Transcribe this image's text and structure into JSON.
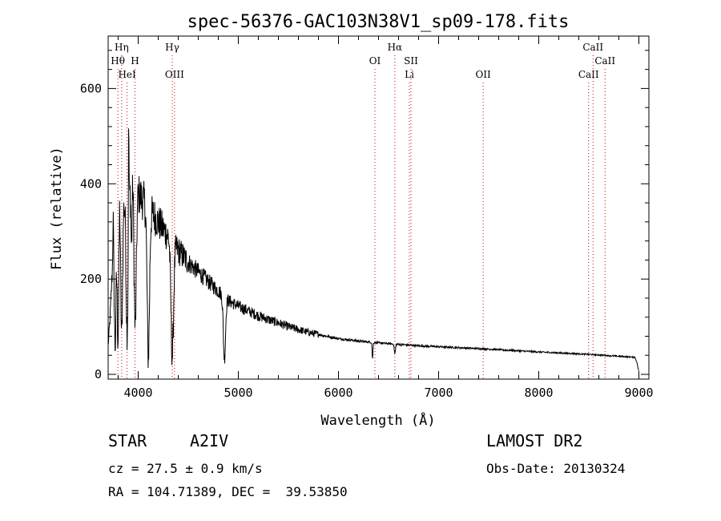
{
  "chart_data": {
    "type": "line",
    "title": "spec-56376-GAC103N38V1_sp09-178.fits",
    "xlabel": "Wavelength (Å)",
    "ylabel": "Flux (relative)",
    "xlim": [
      3700,
      9100
    ],
    "ylim": [
      -10,
      710
    ],
    "xticks": [
      4000,
      5000,
      6000,
      7000,
      8000,
      9000
    ],
    "yticks": [
      0,
      200,
      400,
      600
    ],
    "grid": false,
    "line_color": "#000000",
    "marker_color": "#cc0000",
    "continuum": [
      [
        3700,
        60
      ],
      [
        3720,
        120
      ],
      [
        3750,
        260
      ],
      [
        3800,
        330
      ],
      [
        3850,
        360
      ],
      [
        3900,
        380
      ],
      [
        3950,
        390
      ],
      [
        4000,
        380
      ],
      [
        4100,
        350
      ],
      [
        4200,
        320
      ],
      [
        4300,
        290
      ],
      [
        4400,
        260
      ],
      [
        4500,
        235
      ],
      [
        4600,
        215
      ],
      [
        4700,
        195
      ],
      [
        4800,
        175
      ],
      [
        4900,
        155
      ],
      [
        5000,
        143
      ],
      [
        5100,
        133
      ],
      [
        5200,
        123
      ],
      [
        5300,
        115
      ],
      [
        5400,
        108
      ],
      [
        5500,
        100
      ],
      [
        5600,
        94
      ],
      [
        5700,
        88
      ],
      [
        5800,
        84
      ],
      [
        5900,
        79
      ],
      [
        6000,
        75
      ],
      [
        6200,
        70
      ],
      [
        6400,
        66
      ],
      [
        6600,
        63
      ],
      [
        6800,
        60
      ],
      [
        7000,
        58
      ],
      [
        7500,
        53
      ],
      [
        8000,
        47
      ],
      [
        8500,
        42
      ],
      [
        8800,
        38
      ],
      [
        8960,
        36
      ],
      [
        8980,
        25
      ],
      [
        9000,
        5
      ]
    ],
    "absorption_lines": [
      {
        "center": 3770,
        "depth": 230,
        "width": 8
      },
      {
        "center": 3798,
        "depth": 250,
        "width": 8
      },
      {
        "center": 3835,
        "depth": 270,
        "width": 9
      },
      {
        "center": 3889,
        "depth": 280,
        "width": 10
      },
      {
        "center": 3933,
        "depth": 120,
        "width": 5
      },
      {
        "center": 3970,
        "depth": 290,
        "width": 11
      },
      {
        "center": 4101,
        "depth": 310,
        "width": 12
      },
      {
        "center": 4340,
        "depth": 240,
        "width": 13
      },
      {
        "center": 4861,
        "depth": 130,
        "width": 11
      },
      {
        "center": 6340,
        "depth": 35,
        "width": 4
      },
      {
        "center": 6563,
        "depth": 20,
        "width": 6
      }
    ],
    "emission_spikes": [
      {
        "center": 3905,
        "height": 210,
        "width": 3
      },
      {
        "center": 3948,
        "height": 40,
        "width": 4
      },
      {
        "center": 3750,
        "height": 80,
        "width": 3
      },
      {
        "center": 3815,
        "height": 60,
        "width": 3
      }
    ],
    "line_markers": [
      {
        "wavelength": 3797,
        "labels": [
          "Hθ"
        ],
        "row": 2
      },
      {
        "wavelength": 3835,
        "labels": [
          "Hη"
        ],
        "row": 1
      },
      {
        "wavelength": 3889,
        "labels": [
          "HeI"
        ],
        "row": 3
      },
      {
        "wavelength": 3968,
        "labels": [
          "H"
        ],
        "row": 2
      },
      {
        "wavelength": 4340,
        "labels": [
          "Hγ"
        ],
        "row": 1
      },
      {
        "wavelength": 4363,
        "labels": [
          "OIII"
        ],
        "row": 3
      },
      {
        "wavelength": 6364,
        "labels": [
          "OI"
        ],
        "row": 2
      },
      {
        "wavelength": 6563,
        "labels": [
          "Hα"
        ],
        "row": 1
      },
      {
        "wavelength": 6708,
        "labels": [
          "Li"
        ],
        "row": 3
      },
      {
        "wavelength": 6724,
        "labels": [
          "SII"
        ],
        "row": 2
      },
      {
        "wavelength": 7445,
        "labels": [
          "OII"
        ],
        "row": 3
      },
      {
        "wavelength": 8498,
        "labels": [
          "CaII"
        ],
        "row": 3
      },
      {
        "wavelength": 8542,
        "labels": [
          "CaII"
        ],
        "row": 1
      },
      {
        "wavelength": 8662,
        "labels": [
          "CaII"
        ],
        "row": 2
      }
    ]
  },
  "info": {
    "object_type": "STAR",
    "subclass": "A2IV",
    "survey": "LAMOST DR2",
    "cz": "cz = 27.5 ± 0.9 km/s",
    "obs_date": "Obs-Date: 20130324",
    "coords": "RA = 104.71389, DEC =  39.53850"
  }
}
